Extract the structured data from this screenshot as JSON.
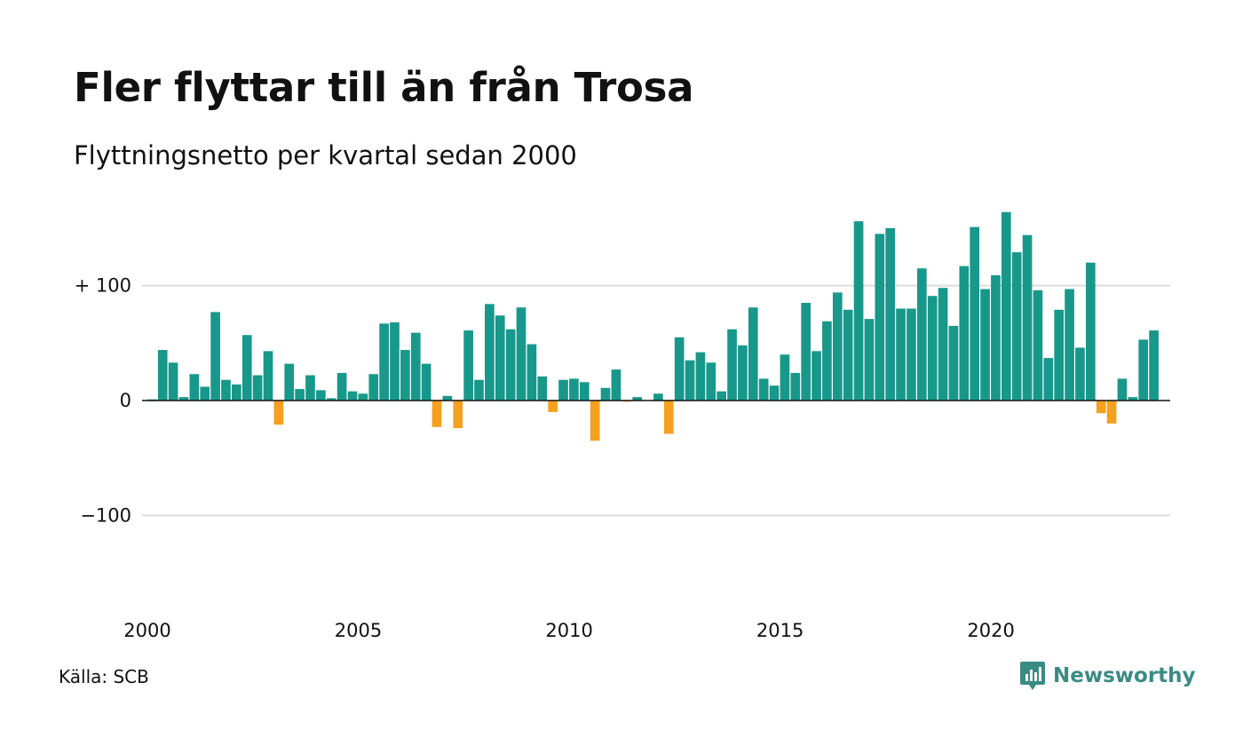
{
  "title": "Fler flyttar till än från Trosa",
  "subtitle": "Flyttningsnetto per kvartal sedan 2000",
  "source": "Källa: SCB",
  "logo_text": "Newsworthy",
  "colors": {
    "positive": "#18988b",
    "negative": "#f5a01f",
    "grid": "#dddddd",
    "zero": "#111111",
    "logo": "#3a8b84"
  },
  "chart_data": {
    "type": "bar",
    "title": "Fler flyttar till än från Trosa",
    "subtitle": "Flyttningsnetto per kvartal sedan 2000",
    "xlabel": "",
    "ylabel": "",
    "x_start": 2000,
    "x_end": 2024.25,
    "ylim": [
      -180,
      160
    ],
    "yticks": [
      {
        "value": 100,
        "label": "+ 100"
      },
      {
        "value": 0,
        "label": "0"
      },
      {
        "value": -100,
        "label": "−100"
      }
    ],
    "xticks": [
      "2000",
      "2005",
      "2010",
      "2015",
      "2020"
    ],
    "grid": true,
    "categories": [
      "2000 K1",
      "2000 K2",
      "2000 K3",
      "2000 K4",
      "2001 K1",
      "2001 K2",
      "2001 K3",
      "2001 K4",
      "2002 K1",
      "2002 K2",
      "2002 K3",
      "2002 K4",
      "2003 K1",
      "2003 K2",
      "2003 K3",
      "2003 K4",
      "2004 K1",
      "2004 K2",
      "2004 K3",
      "2004 K4",
      "2005 K1",
      "2005 K2",
      "2005 K3",
      "2005 K4",
      "2006 K1",
      "2006 K2",
      "2006 K3",
      "2006 K4",
      "2007 K1",
      "2007 K2",
      "2007 K3",
      "2007 K4",
      "2008 K1",
      "2008 K2",
      "2008 K3",
      "2008 K4",
      "2009 K1",
      "2009 K2",
      "2009 K3",
      "2009 K4",
      "2010 K1",
      "2010 K2",
      "2010 K3",
      "2010 K4",
      "2011 K1",
      "2011 K2",
      "2011 K3",
      "2011 K4",
      "2012 K1",
      "2012 K2",
      "2012 K3",
      "2012 K4",
      "2013 K1",
      "2013 K2",
      "2013 K3",
      "2013 K4",
      "2014 K1",
      "2014 K2",
      "2014 K3",
      "2014 K4",
      "2015 K1",
      "2015 K2",
      "2015 K3",
      "2015 K4",
      "2016 K1",
      "2016 K2",
      "2016 K3",
      "2016 K4",
      "2017 K1",
      "2017 K2",
      "2017 K3",
      "2017 K4",
      "2018 K1",
      "2018 K2",
      "2018 K3",
      "2018 K4",
      "2019 K1",
      "2019 K2",
      "2019 K3",
      "2019 K4",
      "2020 K1",
      "2020 K2",
      "2020 K3",
      "2020 K4",
      "2021 K1",
      "2021 K2",
      "2021 K3",
      "2021 K4",
      "2022 K1",
      "2022 K2",
      "2022 K3",
      "2022 K4",
      "2023 K1",
      "2023 K2",
      "2023 K3",
      "2023 K4",
      "2024 K1"
    ],
    "values": [
      1,
      44,
      33,
      3,
      23,
      12,
      77,
      18,
      14,
      57,
      22,
      43,
      -21,
      32,
      10,
      22,
      9,
      2,
      24,
      8,
      6,
      23,
      67,
      68,
      44,
      59,
      32,
      -23,
      4,
      -24,
      61,
      18,
      84,
      74,
      62,
      81,
      49,
      21,
      -10,
      18,
      19,
      16,
      -35,
      11,
      27,
      -1,
      3,
      0,
      6,
      -29,
      55,
      35,
      42,
      33,
      8,
      62,
      48,
      81,
      19,
      13,
      40,
      24,
      85,
      43,
      69,
      94,
      79,
      156,
      71,
      145,
      150,
      80,
      80,
      115,
      91,
      98,
      65,
      117,
      151,
      97,
      109,
      164,
      129,
      144,
      96,
      37,
      79,
      97,
      46,
      120,
      -11,
      -20,
      19,
      3,
      53,
      61,
      0
    ]
  }
}
